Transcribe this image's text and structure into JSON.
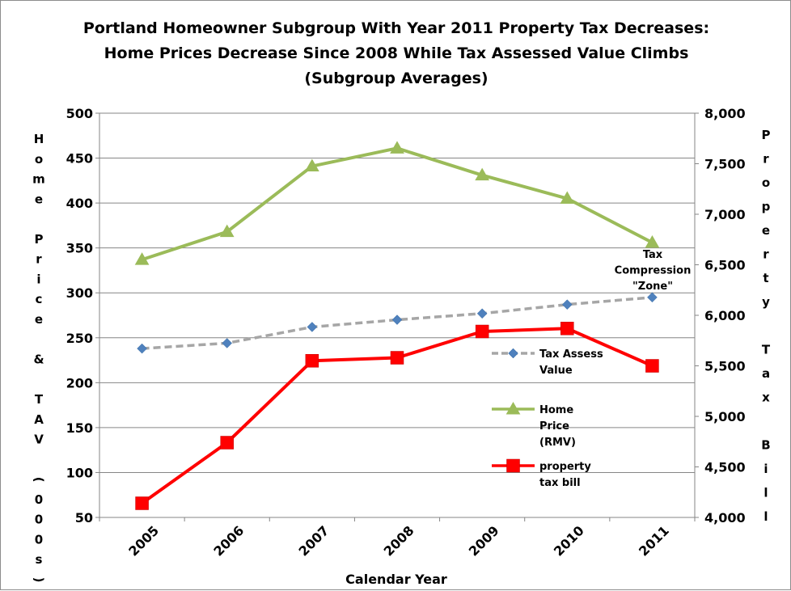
{
  "chart_data": {
    "type": "line",
    "title_lines": [
      "Portland Homeowner Subgroup With Year 2011 Property Tax Decreases:",
      "Home Prices Decrease Since 2008 While Tax Assessed Value Climbs",
      "(Subgroup Averages)"
    ],
    "xlabel": "Calendar Year",
    "ylabel_left": "Home Price & TAV (000s)",
    "ylabel_right": "Property Tax Bill",
    "categories": [
      "2005",
      "2006",
      "2007",
      "2008",
      "2009",
      "2010",
      "2011"
    ],
    "ylim_left": [
      50,
      500
    ],
    "ylim_right": [
      4000,
      8000
    ],
    "yticks_left": [
      "50",
      "100",
      "150",
      "200",
      "250",
      "300",
      "350",
      "400",
      "450",
      "500"
    ],
    "yticks_right": [
      "4,000",
      "4,500",
      "5,000",
      "5,500",
      "6,000",
      "6,500",
      "7,000",
      "7,500",
      "8,000"
    ],
    "grid": "horizontal",
    "series": [
      {
        "name_lines": [
          "Tax Assess",
          "Value"
        ],
        "axis": "left",
        "color": "#a6a6a6",
        "marker_color": "#4f81bd",
        "marker": "diamond",
        "dash": true,
        "values": [
          238,
          244,
          262,
          270,
          277,
          287,
          295
        ]
      },
      {
        "name_lines": [
          "Home",
          "Price",
          "(RMV)"
        ],
        "axis": "left",
        "color": "#9bbb59",
        "marker_color": "#9bbb59",
        "marker": "triangle",
        "dash": false,
        "values": [
          337,
          368,
          441,
          461,
          431,
          405,
          356
        ]
      },
      {
        "name_lines": [
          "property",
          "tax bill"
        ],
        "axis": "right",
        "color": "#ff0000",
        "marker_color": "#ff0000",
        "marker": "square",
        "dash": false,
        "values": [
          4140,
          4740,
          5550,
          5580,
          5840,
          5870,
          5500
        ]
      }
    ],
    "annotation_lines": [
      "Tax",
      "Compression",
      "\"Zone\""
    ],
    "legend_position": "inside-right"
  }
}
